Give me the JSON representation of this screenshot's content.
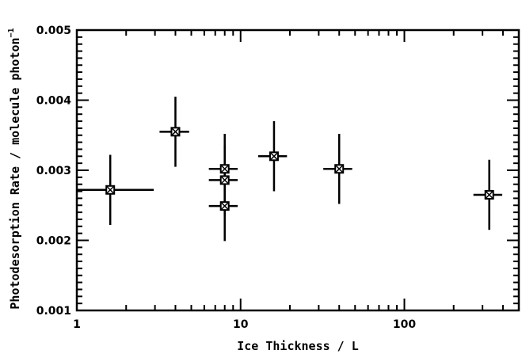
{
  "chart_data": {
    "type": "scatter",
    "xscale": "log",
    "xlim": [
      1,
      500
    ],
    "ylim": [
      0.001,
      0.005
    ],
    "xlabel": "Ice Thickness / L",
    "ylabel": "Photodesorption Rate / molecule photon",
    "ylabel_sup": "−1",
    "x_tick_labels": [
      {
        "value": 1,
        "label": "1"
      },
      {
        "value": 10,
        "label": "10"
      },
      {
        "value": 100,
        "label": "100"
      }
    ],
    "y_tick_labels": [
      {
        "value": 0.001,
        "label": "0.001"
      },
      {
        "value": 0.002,
        "label": "0.002"
      },
      {
        "value": 0.003,
        "label": "0.003"
      },
      {
        "value": 0.004,
        "label": "0.004"
      },
      {
        "value": 0.005,
        "label": "0.005"
      }
    ],
    "grid": false,
    "marker": "square-x",
    "points": [
      {
        "x": 1.6,
        "y": 0.00272,
        "x_low": 1.0,
        "x_high": 2.95,
        "y_err": 0.0005
      },
      {
        "x": 4.0,
        "y": 0.00355,
        "x_low": 3.2,
        "x_high": 4.85,
        "y_err": 0.0005
      },
      {
        "x": 8.0,
        "y": 0.00302,
        "x_low": 6.4,
        "x_high": 9.6,
        "y_err": 0.0005
      },
      {
        "x": 8.0,
        "y": 0.00286,
        "x_low": 6.4,
        "x_high": 9.6,
        "y_err": 0.0005
      },
      {
        "x": 8.0,
        "y": 0.00249,
        "x_low": 6.4,
        "x_high": 9.6,
        "y_err": 0.0005
      },
      {
        "x": 16.0,
        "y": 0.0032,
        "x_low": 12.8,
        "x_high": 19.2,
        "y_err": 0.0005
      },
      {
        "x": 40.0,
        "y": 0.00302,
        "x_low": 32.0,
        "x_high": 48.0,
        "y_err": 0.0005
      },
      {
        "x": 330.0,
        "y": 0.00265,
        "x_low": 264.0,
        "x_high": 396.0,
        "y_err": 0.0005
      }
    ]
  }
}
